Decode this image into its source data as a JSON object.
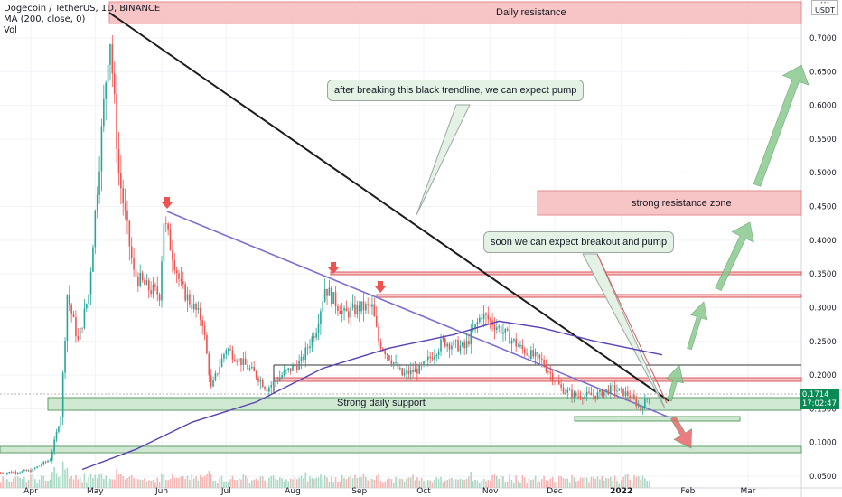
{
  "chart_data": {
    "type": "candlestick",
    "legend": {
      "symbol": "Dogecoin / TetherUS, 1D, BINANCE",
      "ma": "MA (200, close, 0)",
      "vol": "Vol"
    },
    "currency_badge": "USDT",
    "last_price": "0.1714",
    "countdown": "17:02:47",
    "y_ticks": [
      "0.7000",
      "0.6500",
      "0.6000",
      "0.5500",
      "0.5000",
      "0.4500",
      "0.4000",
      "0.3500",
      "0.3000",
      "0.2500",
      "0.2000",
      "0.1500",
      "0.1000",
      "0.0500"
    ],
    "x_ticks": [
      "Apr",
      "May",
      "Jun",
      "Jul",
      "Aug",
      "Sep",
      "Oct",
      "Nov",
      "Dec",
      "2022",
      "Feb",
      "Mar"
    ],
    "ylim": [
      0.045,
      0.745
    ],
    "price_path": [
      [
        "2021-03-18",
        0.055
      ],
      [
        "2021-04-01",
        0.058
      ],
      [
        "2021-04-10",
        0.075
      ],
      [
        "2021-04-15",
        0.14
      ],
      [
        "2021-04-18",
        0.32
      ],
      [
        "2021-04-23",
        0.25
      ],
      [
        "2021-04-28",
        0.32
      ],
      [
        "2021-05-03",
        0.52
      ],
      [
        "2021-05-07",
        0.68
      ],
      [
        "2021-05-08",
        0.7
      ],
      [
        "2021-05-12",
        0.5
      ],
      [
        "2021-05-19",
        0.35
      ],
      [
        "2021-05-25",
        0.33
      ],
      [
        "2021-05-31",
        0.32
      ],
      [
        "2021-06-02",
        0.43
      ],
      [
        "2021-06-10",
        0.33
      ],
      [
        "2021-06-20",
        0.28
      ],
      [
        "2021-06-24",
        0.18
      ],
      [
        "2021-07-01",
        0.24
      ],
      [
        "2021-07-15",
        0.2
      ],
      [
        "2021-07-20",
        0.18
      ],
      [
        "2021-07-27",
        0.2
      ],
      [
        "2021-08-05",
        0.22
      ],
      [
        "2021-08-12",
        0.27
      ],
      [
        "2021-08-16",
        0.33
      ],
      [
        "2021-08-25",
        0.29
      ],
      [
        "2021-09-01",
        0.3
      ],
      [
        "2021-09-07",
        0.3
      ],
      [
        "2021-09-10",
        0.25
      ],
      [
        "2021-09-21",
        0.2
      ],
      [
        "2021-09-30",
        0.21
      ],
      [
        "2021-10-10",
        0.25
      ],
      [
        "2021-10-20",
        0.24
      ],
      [
        "2021-10-28",
        0.29
      ],
      [
        "2021-11-05",
        0.27
      ],
      [
        "2021-11-15",
        0.24
      ],
      [
        "2021-11-25",
        0.22
      ],
      [
        "2021-12-04",
        0.18
      ],
      [
        "2021-12-10",
        0.17
      ],
      [
        "2021-12-20",
        0.17
      ],
      [
        "2021-12-28",
        0.18
      ],
      [
        "2022-01-05",
        0.17
      ],
      [
        "2022-01-10",
        0.15
      ],
      [
        "2022-01-14",
        0.17
      ]
    ],
    "moving_average_200": [
      [
        "2021-04-25",
        0.06
      ],
      [
        "2021-05-20",
        0.09
      ],
      [
        "2021-06-15",
        0.13
      ],
      [
        "2021-07-15",
        0.16
      ],
      [
        "2021-08-15",
        0.21
      ],
      [
        "2021-09-15",
        0.24
      ],
      [
        "2021-10-15",
        0.26
      ],
      [
        "2021-11-05",
        0.28
      ],
      [
        "2021-11-25",
        0.27
      ],
      [
        "2021-12-20",
        0.25
      ],
      [
        "2022-01-20",
        0.23
      ]
    ],
    "zones": [
      {
        "label": "Daily resistance",
        "y": [
          0.72,
          0.76
        ],
        "color": "#f8c5c6"
      },
      {
        "label": "strong resistance zone",
        "y": [
          0.44,
          0.475
        ],
        "color": "#f8c5c6"
      },
      {
        "label": "Strong daily support",
        "y": [
          0.155,
          0.175
        ],
        "color": "#cfe8d2"
      }
    ],
    "annotations": [
      "after breaking this black trendline, we can expect pump",
      "soon we can expect breakout and pump"
    ]
  },
  "colors": {
    "up": "#26a69a",
    "down": "#ef5350",
    "trendline_black": "#1c1c1c",
    "trendline_purple": "#7b6fcf",
    "ma": "#5b3fb5",
    "resistance_fill": "#f8c5c6",
    "support_fill": "#cfe8d2",
    "arrow_green": "#89c98f",
    "arrow_red": "#e8666b"
  }
}
